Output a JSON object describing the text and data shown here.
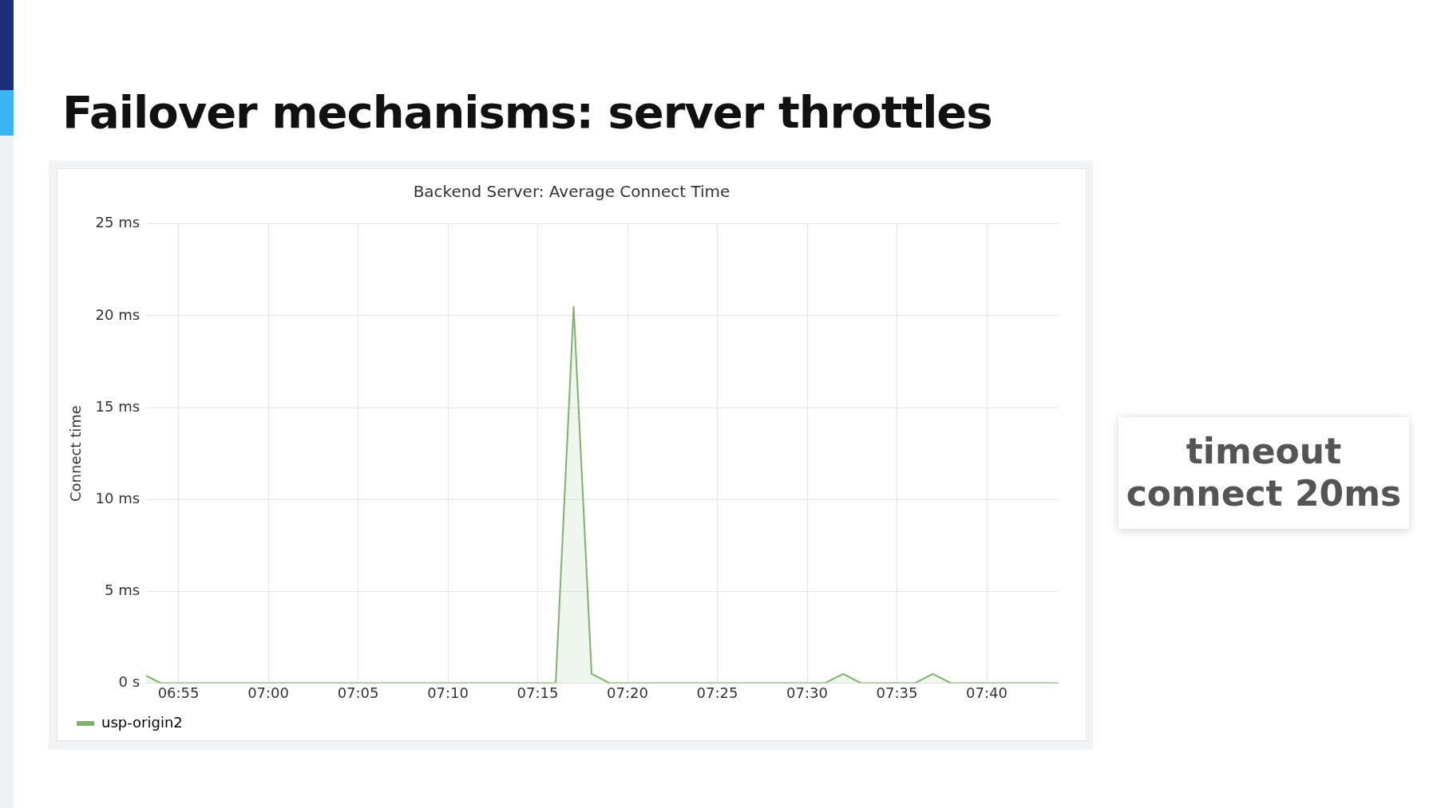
{
  "chart_data": {
    "type": "area",
    "title": "Failover mechanisms: server throttles",
    "subtitle": "Backend Server: Average Connect Time",
    "ylabel": "Connect time",
    "annotations": [
      "timeout connect 20ms"
    ],
    "series": [
      {
        "name": "usp-origin2",
        "color": "#7eb26d",
        "x": [
          6.8867,
          6.9,
          7.266667,
          7.283333,
          7.3,
          7.316667,
          7.516667,
          7.533333,
          7.55,
          7.6,
          7.616667,
          7.633333,
          7.733333
        ],
        "values": [
          0.4,
          0,
          0,
          20.5,
          0.5,
          0,
          0,
          0.5,
          0,
          0,
          0.5,
          0,
          0
        ]
      }
    ],
    "xlim": [
      6.8867,
      7.733333
    ],
    "xticks": [
      {
        "value": 6.916667,
        "label": "06:55"
      },
      {
        "value": 7,
        "label": "07:00"
      },
      {
        "value": 7.083333,
        "label": "07:05"
      },
      {
        "value": 7.166667,
        "label": "07:10"
      },
      {
        "value": 7.25,
        "label": "07:15"
      },
      {
        "value": 7.333333,
        "label": "07:20"
      },
      {
        "value": 7.416667,
        "label": "07:25"
      },
      {
        "value": 7.5,
        "label": "07:30"
      },
      {
        "value": 7.583333,
        "label": "07:35"
      },
      {
        "value": 7.666667,
        "label": "07:40"
      }
    ],
    "ylim": [
      0,
      25
    ],
    "yticks": [
      {
        "value": 0,
        "label": "0 s"
      },
      {
        "value": 5,
        "label": "5 ms"
      },
      {
        "value": 10,
        "label": "10 ms"
      },
      {
        "value": 15,
        "label": "15 ms"
      },
      {
        "value": 20,
        "label": "20 ms"
      },
      {
        "value": 25,
        "label": "25 ms"
      }
    ],
    "grid": true,
    "legend": "bottom left"
  }
}
